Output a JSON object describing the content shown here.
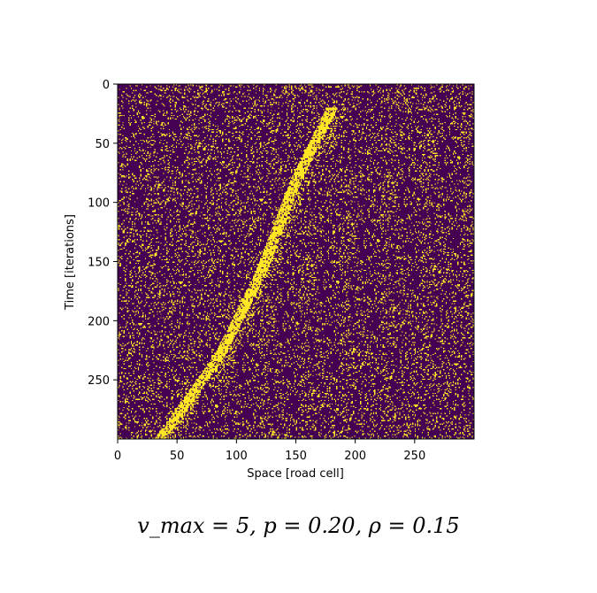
{
  "chart_data": {
    "type": "heatmap",
    "title": "",
    "xlabel": "Space [road cell]",
    "ylabel": "Time [iterations]",
    "xlim": [
      0,
      300
    ],
    "ylim": [
      300,
      0
    ],
    "xticks": [
      "0",
      "50",
      "100",
      "150",
      "200",
      "250"
    ],
    "yticks": [
      "0",
      "50",
      "100",
      "150",
      "200",
      "250"
    ],
    "grid": false,
    "colormap": "viridis (binary)",
    "empty_color": "#440154",
    "occupied_color": "#fde725",
    "params": {
      "v_max": 5,
      "p": 0.2,
      "rho": 0.15
    },
    "jam_band": {
      "description": "dense backward-moving congestion band",
      "points": [
        [
          180,
          20
        ],
        [
          150,
          80
        ],
        [
          120,
          160
        ],
        [
          85,
          230
        ],
        [
          35,
          300
        ]
      ]
    },
    "caption": "v_max = 5, p = 0.20, ρ = 0.15"
  }
}
